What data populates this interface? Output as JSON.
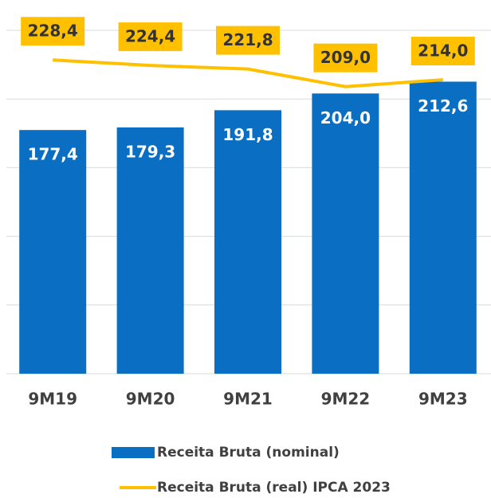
{
  "chart_data": {
    "type": "bar",
    "categories": [
      "9M19",
      "9M20",
      "9M21",
      "9M22",
      "9M23"
    ],
    "series": [
      {
        "name": "Receita Bruta (nominal)",
        "type": "bar",
        "color": "#0a6fc2",
        "values": [
          177.4,
          179.3,
          191.8,
          204.0,
          212.6
        ],
        "value_labels": [
          "177,4",
          "179,3",
          "191,8",
          "204,0",
          "212,6"
        ]
      },
      {
        "name": "Receita Bruta (real) IPCA 2023",
        "type": "line",
        "color": "#ffc000",
        "values": [
          228.4,
          224.4,
          221.8,
          209.0,
          214.0
        ],
        "value_labels": [
          "228,4",
          "224,4",
          "221,8",
          "209,0",
          "214,0"
        ]
      }
    ],
    "ylim": [
      0,
      250
    ],
    "yticks": [
      0,
      50,
      100,
      150,
      200,
      250
    ],
    "grid": true
  }
}
